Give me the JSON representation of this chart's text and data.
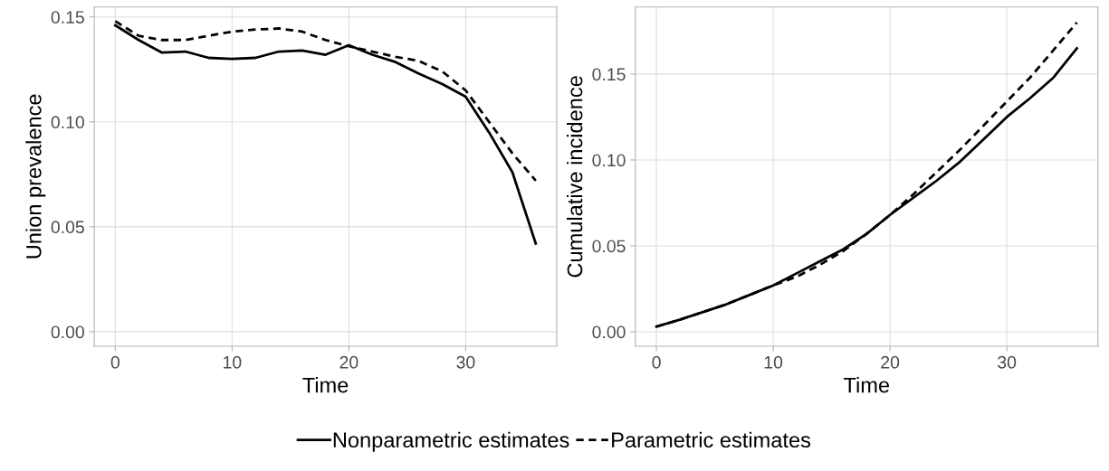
{
  "chart_data": [
    {
      "type": "line",
      "xlabel": "Time",
      "ylabel": "Union prevalence",
      "xlim": [
        -1.8,
        37.8
      ],
      "xticks": [
        0,
        10,
        20,
        30
      ],
      "ylim": [
        -0.0069,
        0.1547
      ],
      "yticks": [
        {
          "value": 0,
          "label": "0.00"
        },
        {
          "value": 0.05,
          "label": "0.05"
        },
        {
          "value": 0.1,
          "label": "0.10"
        },
        {
          "value": 0.15,
          "label": "0.15"
        }
      ],
      "grid": true,
      "legend": "bottom",
      "x": [
        0,
        2,
        4,
        6,
        8,
        10,
        12,
        14,
        16,
        18,
        20,
        22,
        24,
        26,
        28,
        30,
        32,
        34,
        36
      ],
      "series": [
        {
          "name": "Nonparametric estimates",
          "color": "#000000",
          "line_style": "solid",
          "values": [
            0.146,
            0.139,
            0.133,
            0.1335,
            0.1305,
            0.13,
            0.1305,
            0.1335,
            0.134,
            0.132,
            0.1365,
            0.132,
            0.1285,
            0.123,
            0.118,
            0.112,
            0.095,
            0.076,
            0.042
          ]
        },
        {
          "name": "Parametric estimates",
          "color": "#000000",
          "line_style": "dashed",
          "values": [
            0.148,
            0.141,
            0.139,
            0.139,
            0.141,
            0.143,
            0.144,
            0.1445,
            0.143,
            0.139,
            0.136,
            0.1335,
            0.131,
            0.129,
            0.124,
            0.115,
            0.1,
            0.085,
            0.072
          ]
        }
      ]
    },
    {
      "type": "line",
      "xlabel": "Time",
      "ylabel": "Cumulative incidence",
      "xlim": [
        -1.8,
        37.8
      ],
      "xticks": [
        0,
        10,
        20,
        30
      ],
      "ylim": [
        -0.0084,
        0.189
      ],
      "yticks": [
        {
          "value": 0,
          "label": "0.00"
        },
        {
          "value": 0.05,
          "label": "0.05"
        },
        {
          "value": 0.1,
          "label": "0.10"
        },
        {
          "value": 0.15,
          "label": "0.15"
        }
      ],
      "grid": true,
      "legend": "bottom",
      "x": [
        0,
        2,
        4,
        6,
        8,
        10,
        12,
        14,
        16,
        18,
        20,
        22,
        24,
        26,
        28,
        30,
        32,
        34,
        36
      ],
      "series": [
        {
          "name": "Nonparametric estimates",
          "color": "#000000",
          "line_style": "solid",
          "values": [
            0.003,
            0.007,
            0.0115,
            0.016,
            0.0215,
            0.027,
            0.034,
            0.041,
            0.048,
            0.057,
            0.068,
            0.078,
            0.088,
            0.099,
            0.112,
            0.125,
            0.136,
            0.148,
            0.165
          ]
        },
        {
          "name": "Parametric estimates",
          "color": "#000000",
          "line_style": "dashed",
          "values": [
            0.003,
            0.007,
            0.0115,
            0.016,
            0.0215,
            0.027,
            0.032,
            0.039,
            0.047,
            0.057,
            0.068,
            0.08,
            0.093,
            0.106,
            0.12,
            0.134,
            0.148,
            0.164,
            0.18
          ]
        }
      ]
    }
  ]
}
